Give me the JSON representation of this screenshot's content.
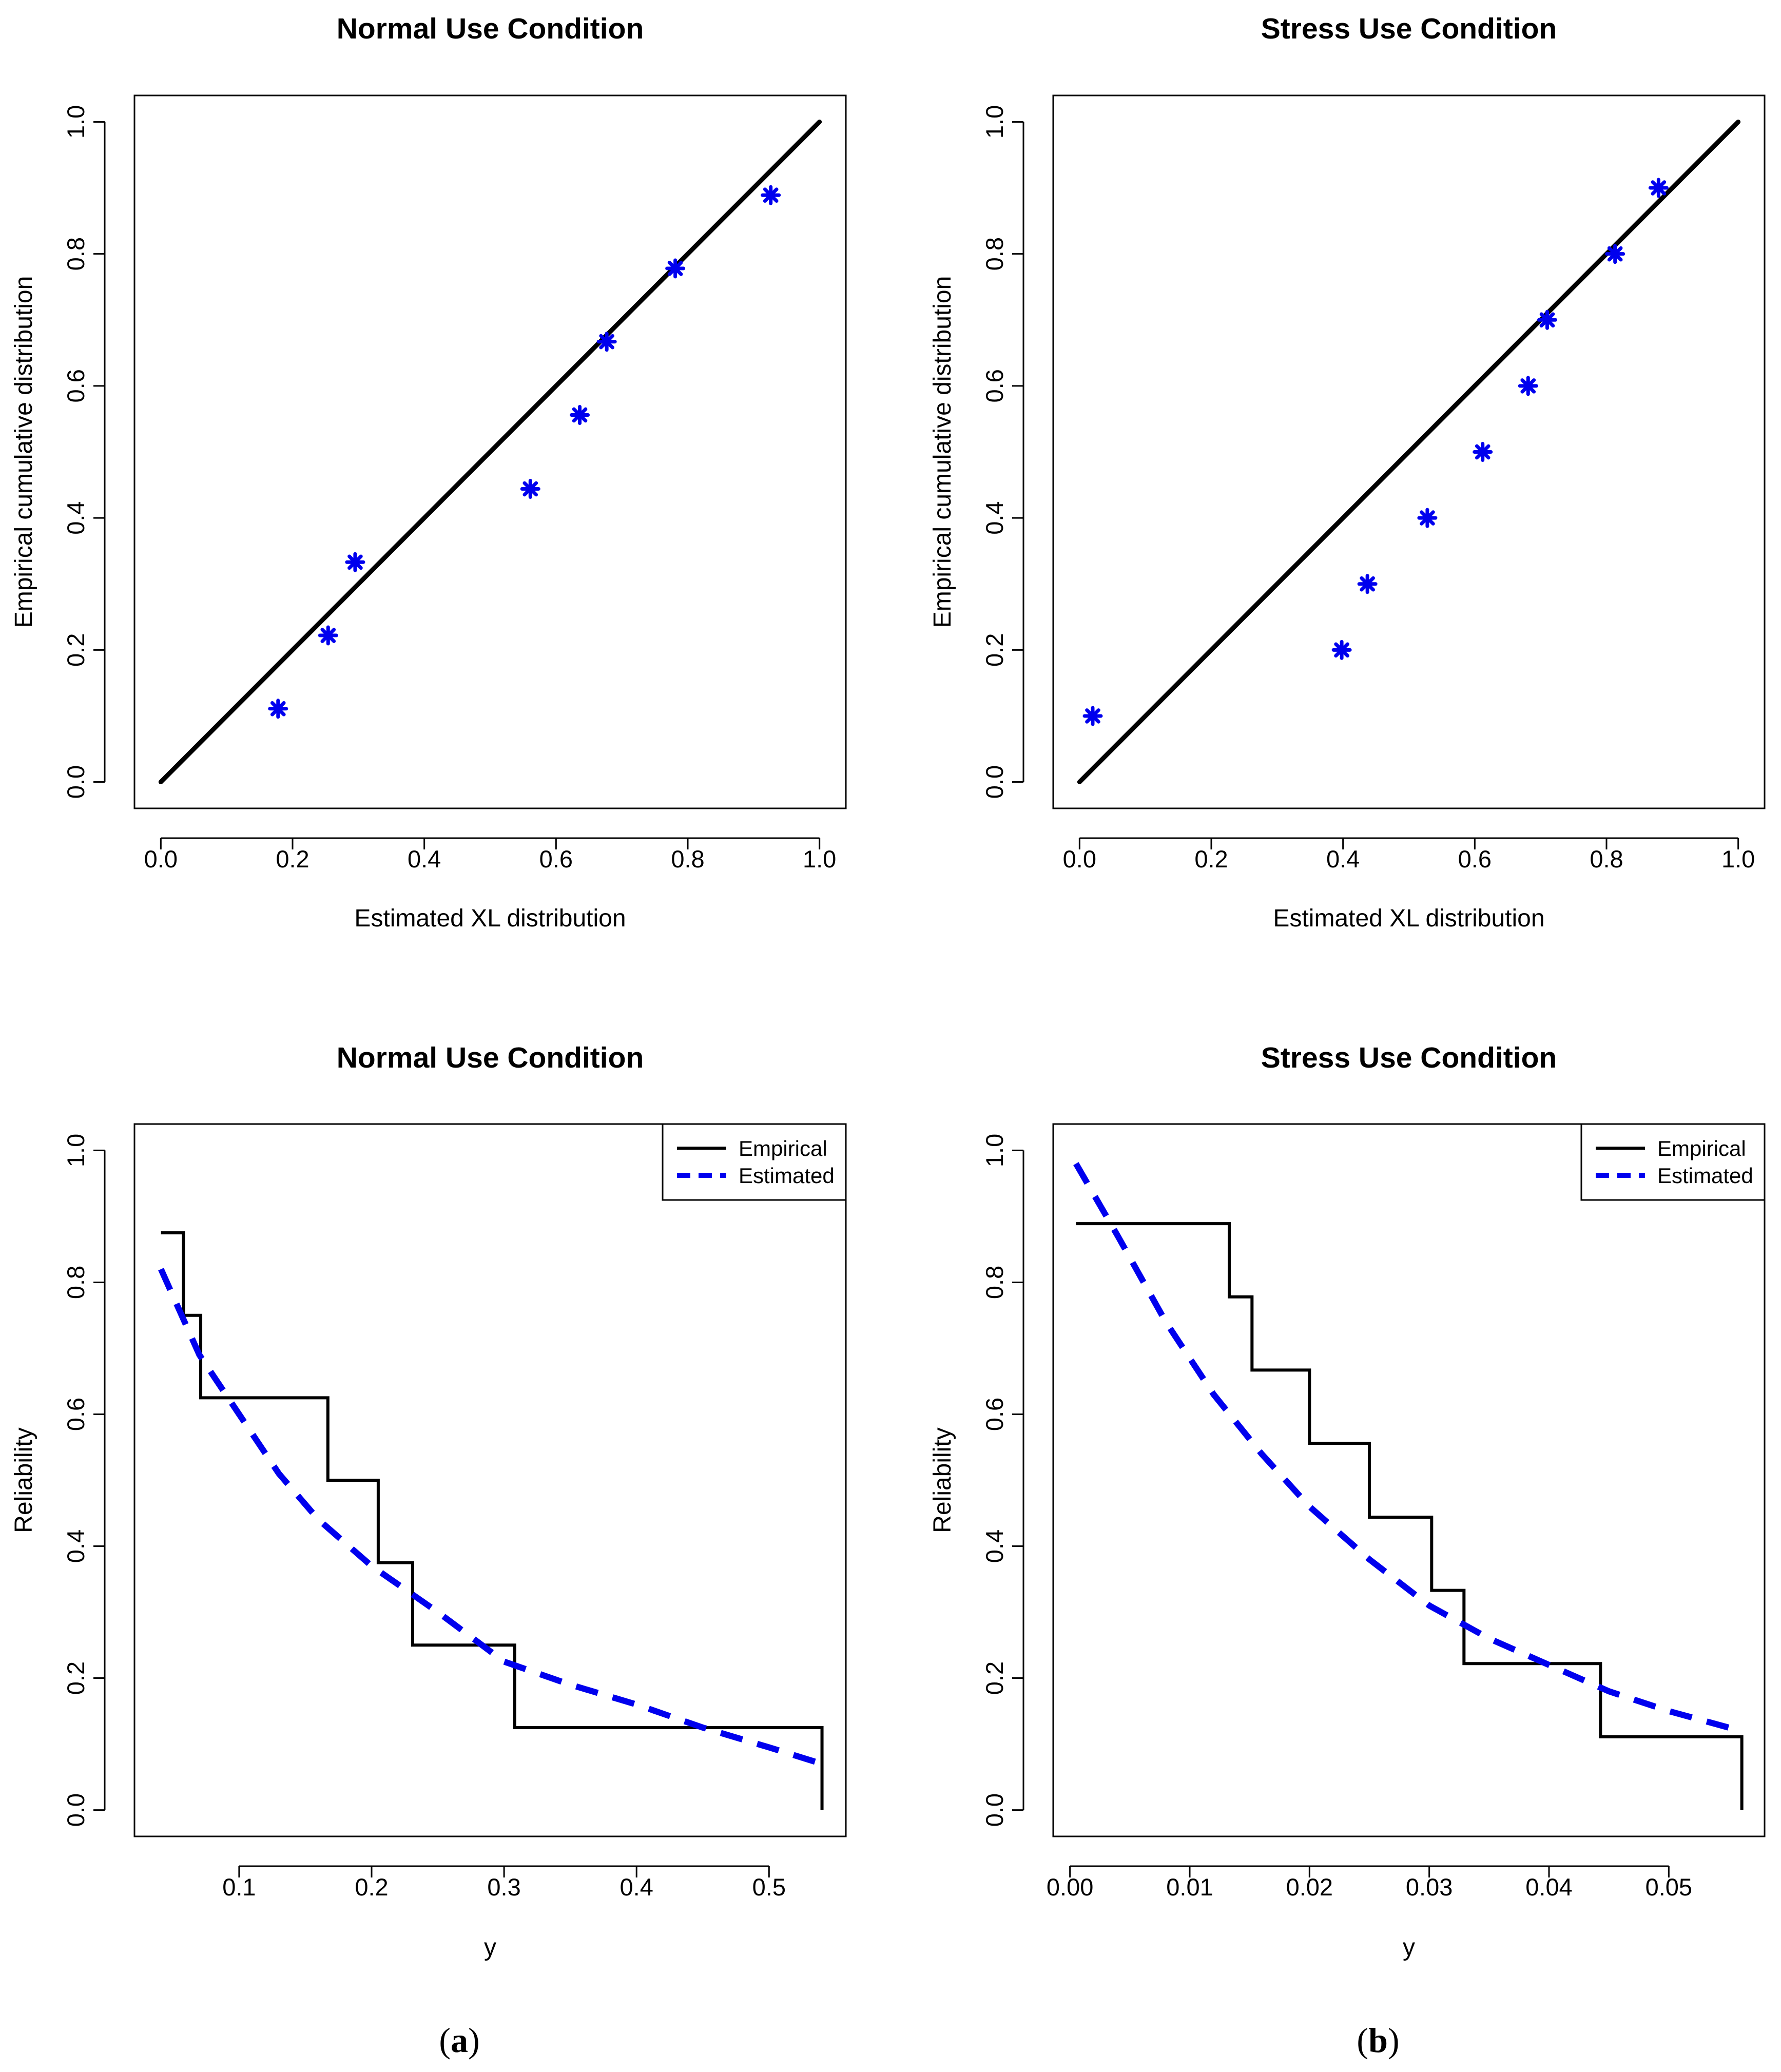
{
  "figure": {
    "caption_left": "a",
    "caption_right": "b"
  },
  "chart_data": [
    {
      "type": "scatter",
      "title": "Normal Use Condition",
      "xlabel": "Estimated XL distribution",
      "ylabel": "Empirical cumulative distribution",
      "xlim": [
        0,
        1
      ],
      "ylim": [
        0,
        1
      ],
      "xticks": [
        "0.0",
        "0.2",
        "0.4",
        "0.6",
        "0.8",
        "1.0"
      ],
      "yticks": [
        "0.0",
        "0.2",
        "0.4",
        "0.6",
        "0.8",
        "1.0"
      ],
      "reference_line": {
        "from": [
          0,
          0
        ],
        "to": [
          1,
          1
        ],
        "color": "#000000"
      },
      "series": [
        {
          "name": "points",
          "color": "#0000ee",
          "marker": "asterisk",
          "x": [
            0.178,
            0.254,
            0.295,
            0.561,
            0.636,
            0.677,
            0.781,
            0.926
          ],
          "y": [
            0.111,
            0.222,
            0.333,
            0.444,
            0.556,
            0.667,
            0.778,
            0.889
          ]
        }
      ]
    },
    {
      "type": "scatter",
      "title": "Stress Use Condition",
      "xlabel": "Estimated XL distribution",
      "ylabel": "Empirical cumulative distribution",
      "xlim": [
        0,
        1
      ],
      "ylim": [
        0,
        1
      ],
      "xticks": [
        "0.0",
        "0.2",
        "0.4",
        "0.6",
        "0.8",
        "1.0"
      ],
      "yticks": [
        "0.0",
        "0.2",
        "0.4",
        "0.6",
        "0.8",
        "1.0"
      ],
      "reference_line": {
        "from": [
          0,
          0
        ],
        "to": [
          1,
          1
        ],
        "color": "#000000"
      },
      "series": [
        {
          "name": "points",
          "color": "#0000ee",
          "marker": "asterisk",
          "x": [
            0.02,
            0.398,
            0.437,
            0.528,
            0.612,
            0.681,
            0.71,
            0.813,
            0.879
          ],
          "y": [
            0.1,
            0.2,
            0.3,
            0.4,
            0.5,
            0.6,
            0.7,
            0.8,
            0.9
          ]
        }
      ]
    },
    {
      "type": "line",
      "title": "Normal Use Condition",
      "xlabel": "y",
      "ylabel": "Reliability",
      "xlim": [
        0.021,
        0.558
      ],
      "ylim": [
        0,
        1
      ],
      "xticks": [
        "0.1",
        "0.2",
        "0.3",
        "0.4",
        "0.5"
      ],
      "yticks": [
        "0.0",
        "0.2",
        "0.4",
        "0.6",
        "0.8",
        "1.0"
      ],
      "legend": {
        "position": "top-right",
        "entries": [
          "Empirical",
          "Estimated"
        ]
      },
      "series": [
        {
          "name": "Empirical",
          "style": "step",
          "color": "#000000",
          "x": [
            0.041,
            0.058,
            0.058,
            0.071,
            0.071,
            0.167,
            0.167,
            0.205,
            0.205,
            0.231,
            0.231,
            0.308,
            0.308,
            0.54,
            0.54
          ],
          "y": [
            0.875,
            0.875,
            0.75,
            0.75,
            0.625,
            0.625,
            0.5,
            0.5,
            0.375,
            0.375,
            0.25,
            0.25,
            0.125,
            0.125,
            0.0
          ]
        },
        {
          "name": "Estimated",
          "style": "dashed",
          "color": "#0000ee",
          "x": [
            0.041,
            0.07,
            0.1,
            0.13,
            0.16,
            0.2,
            0.25,
            0.3,
            0.35,
            0.4,
            0.45,
            0.5,
            0.54
          ],
          "y": [
            0.82,
            0.69,
            0.6,
            0.51,
            0.44,
            0.37,
            0.3,
            0.225,
            0.19,
            0.16,
            0.125,
            0.095,
            0.07
          ]
        }
      ]
    },
    {
      "type": "line",
      "title": "Stress Use Condition",
      "xlabel": "y",
      "ylabel": "Reliability",
      "xlim": [
        -0.0014,
        0.058
      ],
      "ylim": [
        0,
        1
      ],
      "xticks": [
        "0.00",
        "0.01",
        "0.02",
        "0.03",
        "0.04",
        "0.05"
      ],
      "yticks": [
        "0.0",
        "0.2",
        "0.4",
        "0.6",
        "0.8",
        "1.0"
      ],
      "legend": {
        "position": "top-right",
        "entries": [
          "Empirical",
          "Estimated"
        ]
      },
      "series": [
        {
          "name": "Empirical",
          "style": "step",
          "color": "#000000",
          "x": [
            0.0005,
            0.0133,
            0.0133,
            0.0152,
            0.0152,
            0.02,
            0.02,
            0.025,
            0.025,
            0.0302,
            0.0302,
            0.0329,
            0.0329,
            0.0443,
            0.0443,
            0.0561,
            0.0561
          ],
          "y": [
            0.889,
            0.889,
            0.778,
            0.778,
            0.667,
            0.667,
            0.556,
            0.556,
            0.444,
            0.444,
            0.333,
            0.333,
            0.222,
            0.222,
            0.111,
            0.111,
            0.0
          ]
        },
        {
          "name": "Estimated",
          "style": "dashed",
          "color": "#0000ee",
          "x": [
            0.0005,
            0.004,
            0.008,
            0.012,
            0.016,
            0.02,
            0.025,
            0.03,
            0.035,
            0.04,
            0.045,
            0.05,
            0.056
          ],
          "y": [
            0.98,
            0.87,
            0.74,
            0.63,
            0.54,
            0.46,
            0.38,
            0.31,
            0.26,
            0.22,
            0.18,
            0.15,
            0.12
          ]
        }
      ]
    }
  ]
}
